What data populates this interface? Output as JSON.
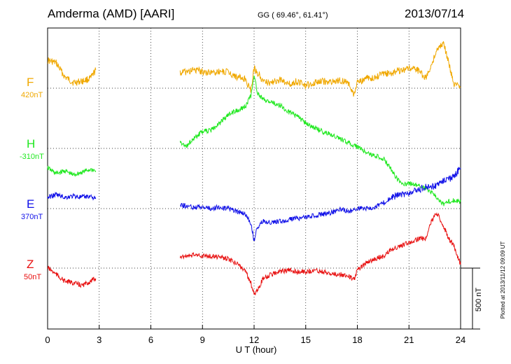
{
  "header": {
    "station": "Amderma (AMD)  [AARI]",
    "coords": "GG ( 69.46°,  61.41°)",
    "date": "2013/07/14"
  },
  "chart_data": {
    "type": "line",
    "xlabel": "U T (hour)",
    "xlim": [
      0,
      24
    ],
    "xticks": [
      "0",
      "3",
      "6",
      "9",
      "12",
      "15",
      "18",
      "21",
      "24"
    ],
    "scale_label": "500 nT",
    "plotted_note": "Plotted at 2013/11/12 09:09 UT",
    "series": [
      {
        "name": "F",
        "baseline_label": "420nT",
        "color": "#f0a800",
        "segments": [
          [
            [
              0,
              86
            ],
            [
              0.5,
              90
            ],
            [
              1,
              110
            ],
            [
              1.5,
              118
            ],
            [
              2,
              116
            ],
            [
              2.5,
              112
            ],
            [
              2.8,
              100
            ]
          ],
          [
            [
              7.7,
              104
            ],
            [
              8,
              103
            ],
            [
              8.5,
              100
            ],
            [
              9,
              102
            ],
            [
              9.5,
              104
            ],
            [
              10,
              102
            ],
            [
              10.5,
              103
            ],
            [
              11,
              110
            ],
            [
              11.5,
              114
            ],
            [
              11.8,
              130
            ],
            [
              12,
              98
            ],
            [
              12.3,
              106
            ],
            [
              12.5,
              116
            ],
            [
              13,
              118
            ],
            [
              13.5,
              114
            ],
            [
              14,
              120
            ],
            [
              14.5,
              116
            ],
            [
              15,
              122
            ],
            [
              15.5,
              118
            ],
            [
              16,
              116
            ],
            [
              16.5,
              118
            ],
            [
              17,
              114
            ],
            [
              17.5,
              120
            ],
            [
              17.8,
              136
            ],
            [
              18,
              118
            ],
            [
              18.5,
              112
            ],
            [
              19,
              110
            ],
            [
              19.5,
              106
            ],
            [
              20,
              104
            ],
            [
              20.5,
              100
            ],
            [
              21,
              98
            ],
            [
              21.5,
              100
            ],
            [
              22,
              112
            ],
            [
              22.3,
              92
            ],
            [
              22.6,
              72
            ],
            [
              23,
              60
            ],
            [
              23.3,
              88
            ],
            [
              23.6,
              120
            ],
            [
              24,
              124
            ]
          ]
        ]
      },
      {
        "name": "H",
        "baseline_label": "-310nT",
        "color": "#1fe81f",
        "segments": [
          [
            [
              0,
              240
            ],
            [
              0.5,
              248
            ],
            [
              1,
              244
            ],
            [
              1.5,
              250
            ],
            [
              2,
              246
            ],
            [
              2.5,
              242
            ],
            [
              2.8,
              244
            ]
          ],
          [
            [
              7.7,
              202
            ],
            [
              8,
              210
            ],
            [
              8.5,
              198
            ],
            [
              9,
              188
            ],
            [
              9.5,
              186
            ],
            [
              10,
              176
            ],
            [
              10.5,
              164
            ],
            [
              11,
              158
            ],
            [
              11.5,
              152
            ],
            [
              11.8,
              138
            ],
            [
              12,
              108
            ],
            [
              12.2,
              132
            ],
            [
              12.5,
              142
            ],
            [
              13,
              146
            ],
            [
              13.5,
              150
            ],
            [
              14,
              160
            ],
            [
              14.5,
              166
            ],
            [
              15,
              176
            ],
            [
              15.5,
              182
            ],
            [
              16,
              188
            ],
            [
              16.5,
              192
            ],
            [
              17,
              198
            ],
            [
              17.5,
              204
            ],
            [
              18,
              210
            ],
            [
              18.5,
              218
            ],
            [
              19,
              222
            ],
            [
              19.5,
              226
            ],
            [
              20,
              244
            ],
            [
              20.5,
              262
            ],
            [
              21,
              262
            ],
            [
              21.5,
              264
            ],
            [
              22,
              270
            ],
            [
              22.5,
              278
            ],
            [
              23,
              292
            ],
            [
              23.5,
              286
            ],
            [
              24,
              288
            ]
          ]
        ]
      },
      {
        "name": "E",
        "baseline_label": "370nT",
        "color": "#1010e8",
        "segments": [
          [
            [
              0,
              282
            ],
            [
              0.5,
              278
            ],
            [
              1,
              282
            ],
            [
              1.5,
              280
            ],
            [
              2,
              282
            ],
            [
              2.5,
              280
            ],
            [
              2.8,
              284
            ]
          ],
          [
            [
              7.7,
              292
            ],
            [
              8,
              294
            ],
            [
              8.5,
              296
            ],
            [
              9,
              296
            ],
            [
              9.5,
              298
            ],
            [
              10,
              296
            ],
            [
              10.5,
              298
            ],
            [
              11,
              302
            ],
            [
              11.5,
              306
            ],
            [
              11.8,
              318
            ],
            [
              12,
              344
            ],
            [
              12.2,
              324
            ],
            [
              12.5,
              316
            ],
            [
              13,
              318
            ],
            [
              13.5,
              316
            ],
            [
              14,
              314
            ],
            [
              14.5,
              312
            ],
            [
              15,
              310
            ],
            [
              15.5,
              308
            ],
            [
              16,
              306
            ],
            [
              16.5,
              304
            ],
            [
              17,
              298
            ],
            [
              17.5,
              302
            ],
            [
              18,
              298
            ],
            [
              18.5,
              298
            ],
            [
              19,
              296
            ],
            [
              19.5,
              290
            ],
            [
              20,
              282
            ],
            [
              20.5,
              278
            ],
            [
              21,
              276
            ],
            [
              21.5,
              272
            ],
            [
              22,
              266
            ],
            [
              22.5,
              266
            ],
            [
              23,
              258
            ],
            [
              23.5,
              254
            ],
            [
              24,
              240
            ]
          ]
        ]
      },
      {
        "name": "Z",
        "baseline_label": "50nT",
        "color": "#e81010",
        "segments": [
          [
            [
              0,
              382
            ],
            [
              0.5,
              392
            ],
            [
              1,
              402
            ],
            [
              1.5,
              404
            ],
            [
              2,
              408
            ],
            [
              2.5,
              402
            ],
            [
              2.8,
              398
            ]
          ],
          [
            [
              7.7,
              366
            ],
            [
              8,
              366
            ],
            [
              8.5,
              364
            ],
            [
              9,
              366
            ],
            [
              9.5,
              366
            ],
            [
              10,
              368
            ],
            [
              10.5,
              370
            ],
            [
              11,
              376
            ],
            [
              11.5,
              388
            ],
            [
              11.8,
              404
            ],
            [
              12,
              420
            ],
            [
              12.3,
              410
            ],
            [
              12.5,
              398
            ],
            [
              13,
              392
            ],
            [
              13.5,
              388
            ],
            [
              14,
              386
            ],
            [
              14.5,
              388
            ],
            [
              15,
              388
            ],
            [
              15.5,
              386
            ],
            [
              16,
              388
            ],
            [
              16.5,
              392
            ],
            [
              17,
              392
            ],
            [
              17.5,
              394
            ],
            [
              17.8,
              400
            ],
            [
              18,
              386
            ],
            [
              18.5,
              376
            ],
            [
              19,
              370
            ],
            [
              19.5,
              366
            ],
            [
              20,
              356
            ],
            [
              20.5,
              352
            ],
            [
              21,
              346
            ],
            [
              21.5,
              342
            ],
            [
              22,
              340
            ],
            [
              22.3,
              316
            ],
            [
              22.6,
              304
            ],
            [
              23,
              322
            ],
            [
              23.3,
              340
            ],
            [
              23.6,
              350
            ],
            [
              24,
              378
            ]
          ]
        ]
      }
    ]
  }
}
